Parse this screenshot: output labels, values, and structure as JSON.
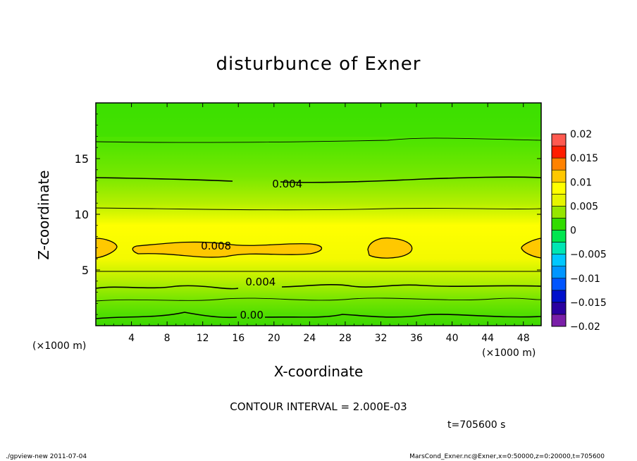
{
  "chart_data": {
    "type": "heatmap",
    "title": "disturbunce of Exner",
    "xlabel": "X-coordinate",
    "ylabel": "Z-coordinate",
    "x_unit": "(×1000 m)",
    "y_unit": "(×1000 m)",
    "xlim": [
      0,
      50
    ],
    "ylim": [
      0,
      20
    ],
    "x_ticks": [
      4,
      8,
      12,
      16,
      20,
      24,
      28,
      32,
      36,
      40,
      44,
      48
    ],
    "y_ticks": [
      5,
      10,
      15
    ],
    "colorbar": {
      "levels": [
        -0.02,
        -0.0175,
        -0.015,
        -0.0125,
        -0.01,
        -0.0075,
        -0.005,
        -0.0025,
        0,
        0.0025,
        0.005,
        0.0075,
        0.01,
        0.0125,
        0.015,
        0.0175,
        0.02
      ],
      "tick_labels": [
        "0.02",
        "0.015",
        "0.01",
        "0.005",
        "0",
        "−0.005",
        "−0.01",
        "−0.015",
        "−0.02"
      ],
      "colors": [
        "#7a1fa8",
        "#2a00a0",
        "#0010cc",
        "#0055ff",
        "#0096ff",
        "#00c8ff",
        "#00e6b4",
        "#00e650",
        "#32dc00",
        "#96e600",
        "#e6f500",
        "#ffff00",
        "#ffc800",
        "#ff8200",
        "#ff1e00",
        "#ff5a50",
        "#ff9a9a"
      ]
    },
    "contour_labels": [
      {
        "text": "0.004",
        "x": 21.5,
        "z": 12.8
      },
      {
        "text": "0.008",
        "x": 13.5,
        "z": 7.2
      },
      {
        "text": "0.004",
        "x": 18.5,
        "z": 4.0
      },
      {
        "text": "0.00",
        "x": 17.5,
        "z": 1.0
      }
    ],
    "contour_interval_text": "CONTOUR INTERVAL = 2.000E-03",
    "time_text": "t=705600 s"
  },
  "footer": {
    "left": "./gpview-new   2011-07-04",
    "right": "MarsCond_Exner.nc@Exner,x=0:50000,z=0:20000,t=705600"
  }
}
